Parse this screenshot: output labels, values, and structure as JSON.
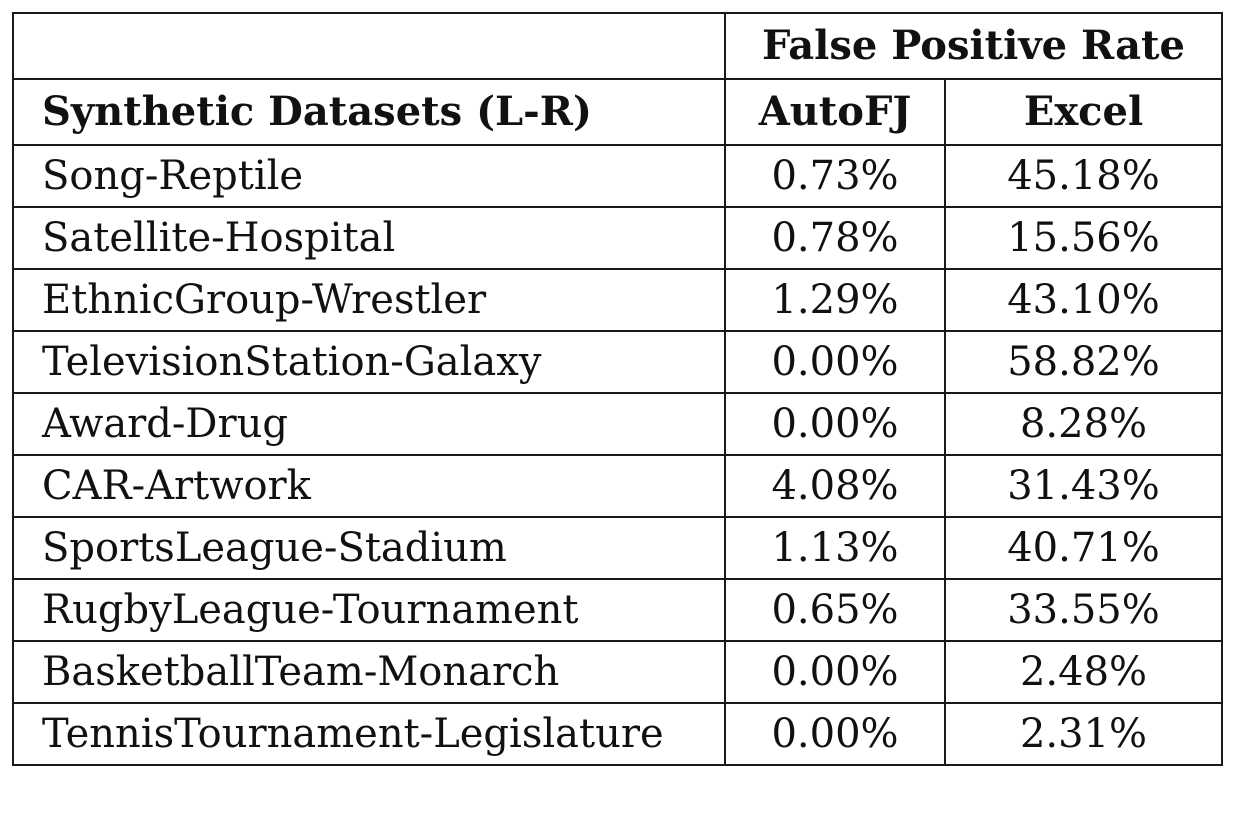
{
  "table": {
    "group_header": "False Positive Rate",
    "row_header": "Synthetic Datasets (L-R)",
    "col_autofj": "AutoFJ",
    "col_excel": "Excel",
    "rows": [
      {
        "name": "Song-Reptile",
        "autofj": "0.73%",
        "excel": "45.18%"
      },
      {
        "name": "Satellite-Hospital",
        "autofj": "0.78%",
        "excel": "15.56%"
      },
      {
        "name": "EthnicGroup-Wrestler",
        "autofj": "1.29%",
        "excel": "43.10%"
      },
      {
        "name": "TelevisionStation-Galaxy",
        "autofj": "0.00%",
        "excel": "58.82%"
      },
      {
        "name": "Award-Drug",
        "autofj": "0.00%",
        "excel": "8.28%"
      },
      {
        "name": "CAR-Artwork",
        "autofj": "4.08%",
        "excel": "31.43%"
      },
      {
        "name": "SportsLeague-Stadium",
        "autofj": "1.13%",
        "excel": "40.71%"
      },
      {
        "name": "RugbyLeague-Tournament",
        "autofj": "0.65%",
        "excel": "33.55%"
      },
      {
        "name": "BasketballTeam-Monarch",
        "autofj": "0.00%",
        "excel": "2.48%"
      },
      {
        "name": "TennisTournament-Legislature",
        "autofj": "0.00%",
        "excel": "2.31%"
      }
    ]
  }
}
